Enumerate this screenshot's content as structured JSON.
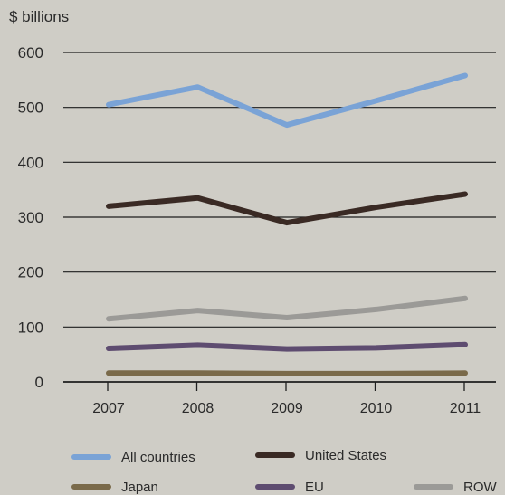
{
  "chart_data": {
    "type": "line",
    "y_unit_label": "$ billions",
    "x": [
      "2007",
      "2008",
      "2009",
      "2010",
      "2011"
    ],
    "ylim": [
      0,
      600
    ],
    "yticks": [
      0,
      100,
      200,
      300,
      400,
      500,
      600
    ],
    "grid": true,
    "legend_position": "bottom",
    "series": [
      {
        "name": "All countries",
        "color": "#7aa3d6",
        "values": [
          505,
          537,
          468,
          512,
          558
        ]
      },
      {
        "name": "United States",
        "color": "#3a2a24",
        "values": [
          320,
          335,
          290,
          318,
          342
        ]
      },
      {
        "name": "Japan",
        "color": "#7a6a4a",
        "values": [
          16,
          16,
          15,
          15,
          16
        ]
      },
      {
        "name": "EU",
        "color": "#5e4c70",
        "values": [
          61,
          67,
          60,
          62,
          68
        ]
      },
      {
        "name": "ROW",
        "color": "#9b9a97",
        "values": [
          115,
          130,
          117,
          132,
          152
        ]
      }
    ]
  }
}
